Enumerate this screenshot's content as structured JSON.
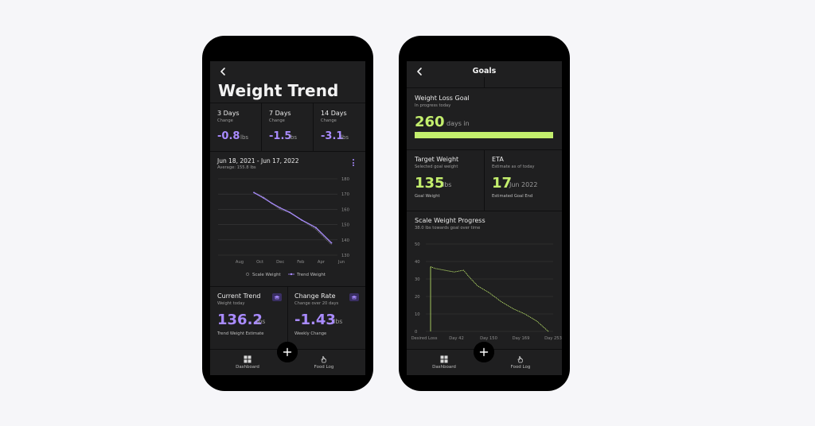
{
  "weight_screen": {
    "title": "Weight Trend",
    "stats": [
      {
        "period": "3 Days",
        "sub": "Change",
        "value": "-0.8",
        "unit": "lbs"
      },
      {
        "period": "7 Days",
        "sub": "Change",
        "value": "-1.5",
        "unit": "lbs"
      },
      {
        "period": "14 Days",
        "sub": "Change",
        "value": "-3.1",
        "unit": "lbs"
      }
    ],
    "chart_header": {
      "range": "Jun 18, 2021 - Jun 17, 2022",
      "average": "Average: 155.8 lbs"
    },
    "legend": {
      "scale": "Scale Weight",
      "trend": "Trend Weight"
    },
    "current_trend": {
      "title": "Current Trend",
      "sub": "Weight today",
      "value": "136.2",
      "unit": "lbs",
      "caption": "Trend Weight Estimate"
    },
    "change_rate": {
      "title": "Change Rate",
      "sub": "Change over 20 days",
      "value": "-1.43",
      "unit": "lbs",
      "caption": "Weekly Change"
    }
  },
  "goals_screen": {
    "title": "Goals",
    "weight_loss_goal": {
      "title": "Weight Loss Goal",
      "sub": "In progress today",
      "value": "260",
      "unit": "days in",
      "progress": 1.0
    },
    "target_weight": {
      "title": "Target Weight",
      "sub": "Selected goal weight",
      "value": "135",
      "unit": "lbs",
      "caption": "Goal Weight"
    },
    "eta": {
      "title": "ETA",
      "sub": "Estimate as of today",
      "value": "17",
      "unit": "Jun 2022",
      "caption": "Estimated Goal End"
    },
    "progress_chart_header": {
      "title": "Scale Weight Progress",
      "sub": "38.0 lbs towards goal over time"
    }
  },
  "nav": {
    "dashboard": "Dashboard",
    "food_log": "Food Log"
  },
  "colors": {
    "purple": "#a98bff",
    "green": "#c3ee6d",
    "background": "#1f1f20"
  },
  "chart_data": [
    {
      "type": "line",
      "x_labels": [
        "Aug",
        "Oct",
        "Dec",
        "Feb",
        "Apr",
        "Jun"
      ],
      "y_ticks": [
        130,
        140,
        150,
        160,
        170,
        180
      ],
      "ylim": [
        130,
        180
      ],
      "grid": true,
      "legend_position": "bottom",
      "series": [
        {
          "name": "Scale Weight",
          "x": [
            0.3,
            0.38,
            0.45,
            0.52,
            0.6,
            0.7,
            0.82,
            0.95
          ],
          "y": [
            171,
            168,
            164,
            160,
            158,
            153,
            147,
            137
          ]
        },
        {
          "name": "Trend Weight",
          "x": [
            0.3,
            0.38,
            0.45,
            0.52,
            0.6,
            0.7,
            0.82,
            0.95
          ],
          "y": [
            171,
            167.5,
            164,
            161,
            158,
            153,
            148,
            138
          ]
        }
      ]
    },
    {
      "type": "line",
      "x_labels": [
        "Desired Loss",
        "Day 42",
        "Day 150",
        "Day 169",
        "Day 253"
      ],
      "y_ticks": [
        0,
        10,
        20,
        30,
        40,
        50
      ],
      "ylim": [
        0,
        50
      ],
      "grid": true,
      "series": [
        {
          "x": [
            0,
            0.04,
            0.12,
            0.2,
            0.28,
            0.33,
            0.4,
            0.5,
            0.6,
            0.7,
            0.8,
            0.9,
            1.0
          ],
          "y": [
            37,
            36,
            35,
            34,
            35,
            31,
            26,
            22,
            17,
            13,
            10,
            6,
            0
          ]
        }
      ]
    }
  ]
}
